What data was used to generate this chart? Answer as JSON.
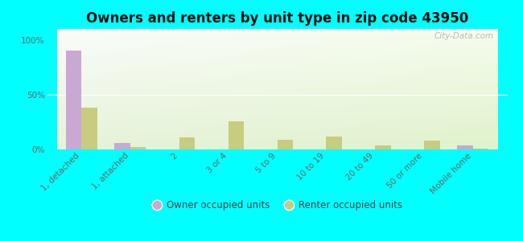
{
  "title": "Owners and renters by unit type in zip code 43950",
  "categories": [
    "1, detached",
    "1, attached",
    "2",
    "3 or 4",
    "5 to 9",
    "10 to 19",
    "20 to 49",
    "50 or more",
    "Mobile home"
  ],
  "owner_values": [
    90,
    6,
    0,
    0,
    0,
    0,
    0,
    0,
    4
  ],
  "renter_values": [
    38,
    2,
    11,
    26,
    9,
    12,
    4,
    8,
    1
  ],
  "owner_color": "#c9a8d4",
  "renter_color": "#c8cc7e",
  "background_color": "#00ffff",
  "ylabel_ticks": [
    "0%",
    "50%",
    "100%"
  ],
  "yticks": [
    0,
    50,
    100
  ],
  "ylim": [
    0,
    110
  ],
  "bar_width": 0.32,
  "legend_owner": "Owner occupied units",
  "legend_renter": "Renter occupied units",
  "watermark": "City-Data.com",
  "grid_color": "#e0e8d0",
  "title_fontsize": 12,
  "tick_fontsize": 7.5
}
